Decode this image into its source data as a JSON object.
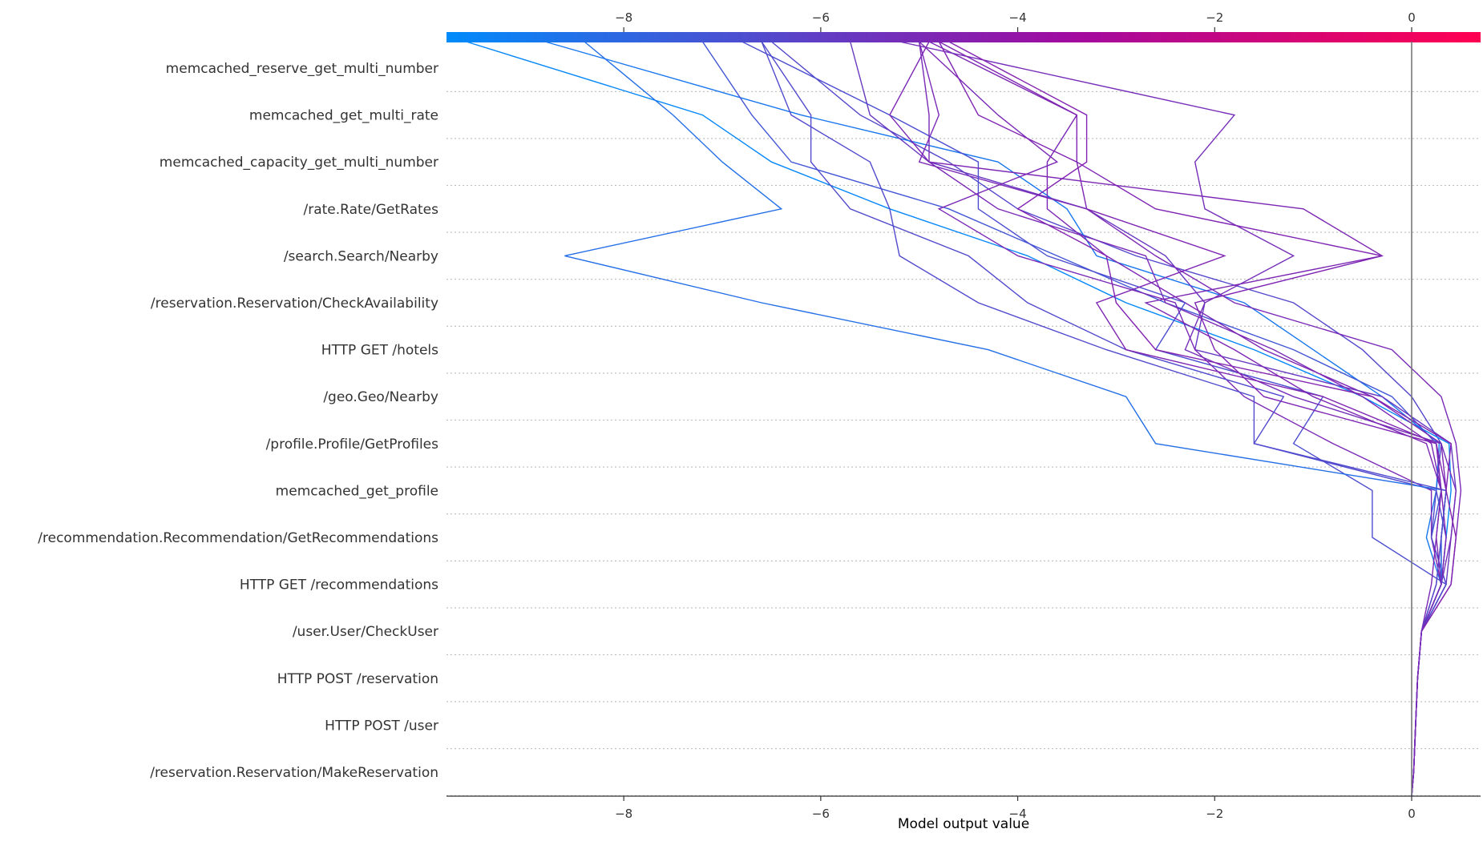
{
  "chart_data": {
    "type": "line",
    "subtype": "decision-plot",
    "xlabel": "Model output value",
    "xlim": [
      -9.8,
      0.7
    ],
    "xticks": [
      -8,
      -6,
      -4,
      -2,
      0
    ],
    "xtick_labels": [
      "−8",
      "−6",
      "−4",
      "−2",
      "0"
    ],
    "base_value": 0,
    "grid": "horizontal dotted",
    "colorbar": {
      "position": "top",
      "from": "#008bfb",
      "mid": "#a00ba0",
      "to": "#ff0051"
    },
    "features": [
      "memcached_reserve_get_multi_number",
      "memcached_get_multi_rate",
      "memcached_capacity_get_multi_number",
      "/rate.Rate/GetRates",
      "/search.Search/Nearby",
      "/reservation.Reservation/CheckAvailability",
      "HTTP GET /hotels",
      "/geo.Geo/Nearby",
      "/profile.Profile/GetProfiles",
      "memcached_get_profile",
      "/recommendation.Recommendation/GetRecommendations",
      "HTTP GET /recommendations",
      "/user.User/CheckUser",
      "HTTP POST /reservation",
      "HTTP POST /user",
      "/reservation.Reservation/MakeReservation"
    ],
    "series_note": "Each path lists cumulative model output values from the bottom row (/reservation.Reservation/MakeReservation) up to the top row (memcached_reserve_get_multi_number), then the final output at the top edge.",
    "series": [
      {
        "values": [
          0,
          0.02,
          0.04,
          0.06,
          0.1,
          0.3,
          0.35,
          0.25,
          0.3,
          0.0,
          -0.5,
          -1.2,
          -2.8,
          -4.0,
          -4.7,
          -5.6,
          -6.5
        ]
      },
      {
        "values": [
          0,
          0.02,
          0.04,
          0.06,
          0.1,
          0.3,
          0.15,
          0.25,
          0.28,
          -0.3,
          -1.0,
          -1.7,
          -3.2,
          -3.5,
          -4.2,
          -6.2,
          -8.8
        ]
      },
      {
        "values": [
          0,
          0.02,
          0.04,
          0.06,
          0.1,
          0.3,
          0.35,
          0.4,
          0.38,
          -0.5,
          -1.6,
          -2.9,
          -3.9,
          -5.3,
          -6.5,
          -7.2,
          -9.6
        ]
      },
      {
        "values": [
          0,
          0.02,
          0.04,
          0.06,
          0.1,
          0.35,
          0.2,
          0.3,
          0.25,
          -0.2,
          -1.2,
          -2.5,
          -3.6,
          -4.7,
          -6.3,
          -6.7,
          -7.2
        ]
      },
      {
        "values": [
          0,
          0.02,
          0.04,
          0.06,
          0.1,
          0.3,
          0.3,
          0.35,
          0.3,
          -0.4,
          -1.5,
          -2.3,
          -3.1,
          -3.7,
          -3.7,
          -3.4,
          -4.9
        ]
      },
      {
        "values": [
          0,
          0.02,
          0.04,
          0.06,
          0.1,
          0.35,
          0.4,
          0.45,
          0.4,
          -0.3,
          -2.2,
          -2.1,
          -2.5,
          -3.3,
          -4.9,
          -5.5,
          -5.7
        ]
      },
      {
        "values": [
          0,
          0.02,
          0.04,
          0.06,
          0.1,
          0.4,
          0.45,
          0.5,
          0.45,
          0.3,
          -0.2,
          -1.8,
          -2.6,
          -3.3,
          -5.0,
          -4.8,
          -5.0
        ]
      },
      {
        "values": [
          0,
          0.02,
          0.04,
          0.06,
          0.1,
          0.35,
          -0.4,
          -0.4,
          -1.2,
          -0.9,
          -2.6,
          -2.3,
          -3.7,
          -4.4,
          -4.4,
          -5.3,
          -6.8
        ]
      },
      {
        "values": [
          0,
          0.02,
          0.04,
          0.06,
          0.1,
          0.3,
          0.2,
          0.2,
          -0.8,
          -1.7,
          -2.2,
          -2.4,
          -4.0,
          -4.8,
          -3.6,
          -4.2,
          -5.0
        ]
      },
      {
        "values": [
          0,
          0.02,
          0.04,
          0.06,
          0.1,
          0.35,
          0.2,
          0.25,
          -1.6,
          -1.3,
          -2.9,
          -3.9,
          -4.5,
          -5.7,
          -6.1,
          -6.1,
          -6.6
        ]
      },
      {
        "values": [
          0,
          0.02,
          0.04,
          0.06,
          0.1,
          0.3,
          0.4,
          0.45,
          0.3,
          -1.2,
          -2.3,
          -2.1,
          -1.2,
          -2.1,
          -2.2,
          -1.8,
          -5.2
        ]
      },
      {
        "values": [
          0,
          0.02,
          0.04,
          0.06,
          0.1,
          0.25,
          0.3,
          0.35,
          0.25,
          -1.5,
          -2.0,
          -2.2,
          -0.3,
          -2.6,
          -3.4,
          -4.4,
          -4.8
        ]
      },
      {
        "values": [
          0,
          0.02,
          0.04,
          0.06,
          0.1,
          0.3,
          0.35,
          0.3,
          0.25,
          -0.9,
          -2.9,
          -3.2,
          -1.9,
          -3.3,
          -3.4,
          -3.4,
          -4.8
        ]
      },
      {
        "values": [
          0,
          0.02,
          0.04,
          0.06,
          0.1,
          0.2,
          0.25,
          0.3,
          0.15,
          -1.0,
          -1.8,
          -2.7,
          -0.3,
          -1.1,
          -4.9,
          -5.3,
          -4.9
        ]
      },
      {
        "values": [
          0,
          0.02,
          0.04,
          0.06,
          0.1,
          0.3,
          0.3,
          0.35,
          -2.6,
          -2.9,
          -4.3,
          -6.6,
          -8.6,
          -6.4,
          -7.0,
          -7.5,
          -8.4
        ]
      },
      {
        "values": [
          0,
          0.02,
          0.04,
          0.06,
          0.1,
          0.25,
          0.3,
          0.35,
          -1.6,
          -1.6,
          -3.1,
          -4.4,
          -5.2,
          -5.3,
          -5.5,
          -6.3,
          -6.6
        ]
      },
      {
        "values": [
          0,
          0.02,
          0.04,
          0.06,
          0.1,
          0.4,
          0.45,
          0.35,
          0.4,
          -0.4,
          -2.6,
          -3.0,
          -3.1,
          -4.0,
          -3.3,
          -3.3,
          -4.7
        ]
      },
      {
        "values": [
          0,
          0.02,
          0.04,
          0.06,
          0.1,
          0.3,
          0.25,
          0.3,
          0.2,
          -0.5,
          -1.4,
          -2.5,
          -2.7,
          -4.2,
          -4.9,
          -4.9,
          -5.0
        ]
      }
    ]
  }
}
